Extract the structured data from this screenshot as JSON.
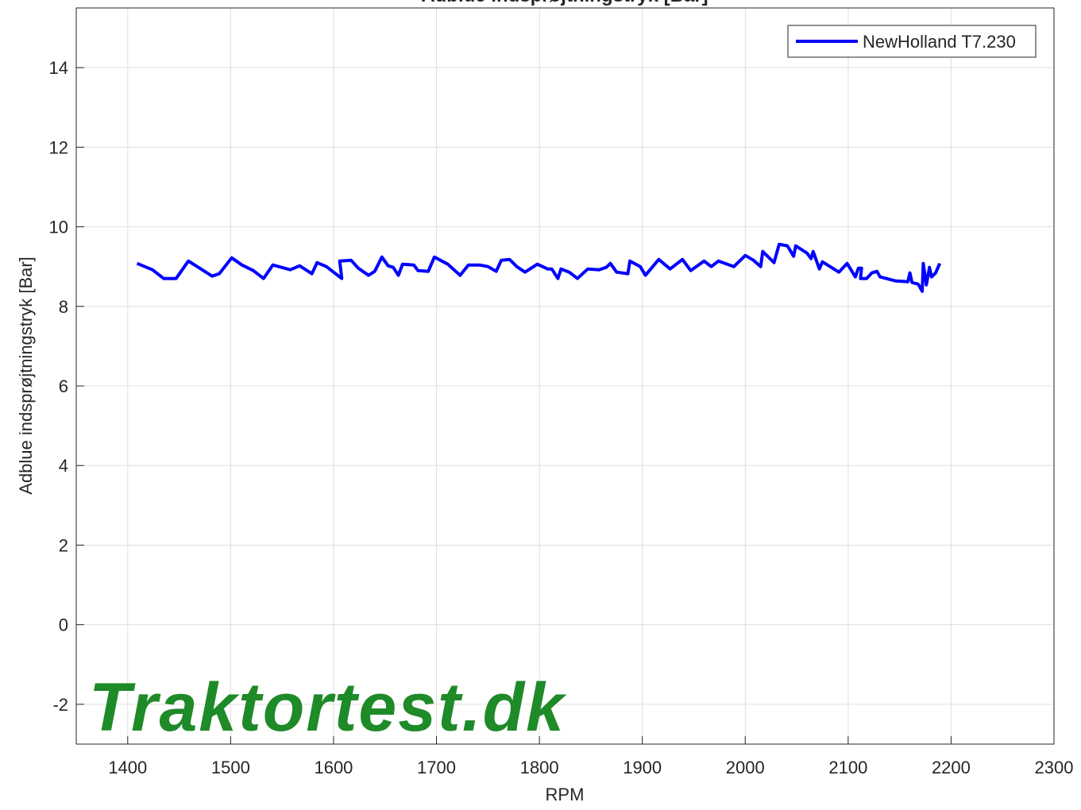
{
  "chart_data": {
    "type": "line",
    "title": "Adblue indsprøjtningstryk [Bar]",
    "xlabel": "RPM",
    "ylabel": "Adblue indsprøjtningstryk [Bar]",
    "watermark": "Traktortest.dk",
    "xlim": [
      1350,
      2300
    ],
    "ylim": [
      -3,
      15.5
    ],
    "xticks": [
      1400,
      1500,
      1600,
      1700,
      1800,
      1900,
      2000,
      2100,
      2200,
      2300
    ],
    "yticks": [
      -2,
      0,
      2,
      4,
      6,
      8,
      10,
      12,
      14
    ],
    "grid": true,
    "legend": "upper right",
    "x": [
      1409,
      1424,
      1435,
      1447,
      1459,
      1482,
      1489,
      1501,
      1511,
      1522,
      1532,
      1541,
      1558,
      1567,
      1579,
      1584,
      1593,
      1608,
      1606,
      1617,
      1624,
      1634,
      1640,
      1647,
      1653,
      1658,
      1663,
      1667,
      1678,
      1682,
      1692,
      1698,
      1711,
      1723,
      1731,
      1742,
      1750,
      1758,
      1763,
      1771,
      1778,
      1786,
      1798,
      1808,
      1812,
      1818,
      1821,
      1829,
      1837,
      1847,
      1858,
      1865,
      1869,
      1875,
      1886,
      1888,
      1898,
      1903,
      1916,
      1927,
      1939,
      1947,
      1960,
      1967,
      1974,
      1989,
      2000,
      2008,
      2015,
      2017,
      2028,
      2033,
      2041,
      2047,
      2049,
      2060,
      2064,
      2066,
      2072,
      2075,
      2091,
      2099,
      2107,
      2110,
      2113,
      2112,
      2118,
      2123,
      2128,
      2131,
      2146,
      2158,
      2160,
      2162,
      2168,
      2172,
      2173,
      2176,
      2179,
      2181,
      2185,
      2189
    ],
    "series": [
      {
        "name": "NewHolland T7.230",
        "color": "#0000ff",
        "values": [
          9.08,
          8.92,
          8.7,
          8.7,
          9.14,
          8.76,
          8.82,
          9.22,
          9.04,
          8.9,
          8.7,
          9.04,
          8.92,
          9.02,
          8.82,
          9.1,
          9.0,
          8.7,
          9.14,
          9.16,
          8.96,
          8.78,
          8.88,
          9.24,
          9.02,
          8.98,
          8.78,
          9.06,
          9.04,
          8.9,
          8.88,
          9.24,
          9.06,
          8.78,
          9.04,
          9.04,
          9.0,
          8.88,
          9.16,
          9.18,
          9.0,
          8.86,
          9.06,
          8.94,
          8.94,
          8.7,
          8.94,
          8.86,
          8.7,
          8.94,
          8.92,
          8.98,
          9.08,
          8.86,
          8.82,
          9.14,
          9.0,
          8.78,
          9.18,
          8.94,
          9.18,
          8.9,
          9.14,
          9.0,
          9.14,
          9.0,
          9.28,
          9.16,
          9.0,
          9.38,
          9.1,
          9.56,
          9.52,
          9.26,
          9.52,
          9.34,
          9.2,
          9.38,
          8.94,
          9.12,
          8.86,
          9.08,
          8.74,
          8.96,
          8.96,
          8.7,
          8.7,
          8.84,
          8.88,
          8.74,
          8.64,
          8.62,
          8.84,
          8.6,
          8.56,
          8.38,
          9.08,
          8.54,
          8.98,
          8.74,
          8.84,
          9.08
        ]
      }
    ]
  }
}
